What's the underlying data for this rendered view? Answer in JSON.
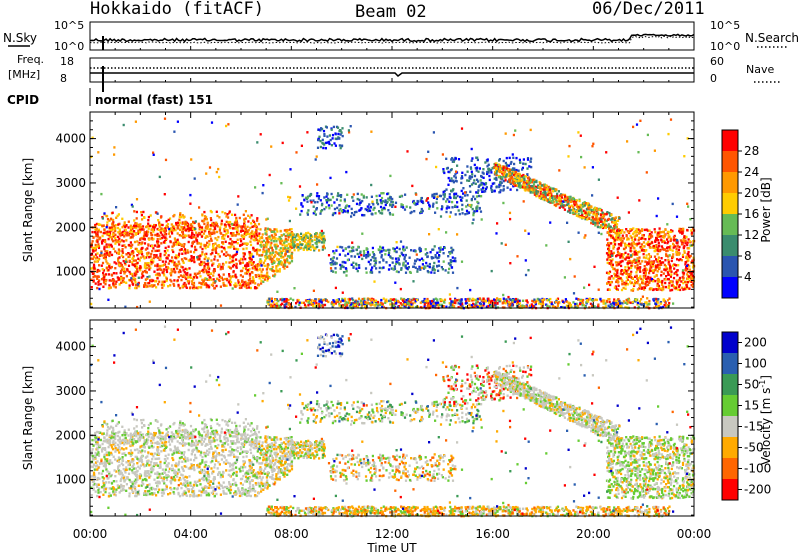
{
  "header": {
    "title_left": "Hokkaido (fitACF)",
    "title_center": "Beam 02",
    "title_right": "06/Dec/2011"
  },
  "top_panels": {
    "nsky": {
      "label_left": "N.Sky",
      "label_right": "N.Search",
      "ticks_left": [
        "10^5",
        "10^0"
      ],
      "ticks_right": [
        "10^5",
        "10^0"
      ]
    },
    "freq": {
      "label_left_1": "Freq.",
      "label_left_2": "[MHz]",
      "label_right": "Nave",
      "ticks_left": [
        "18",
        "8"
      ],
      "ticks_right": [
        "60",
        "0"
      ]
    },
    "cpid": {
      "label": "CPID",
      "value": "normal (fast) 151"
    }
  },
  "colors": {
    "power": [
      "#0000ff",
      "#2a55b0",
      "#3a8c6e",
      "#66bb55",
      "#ffcc00",
      "#ff9900",
      "#ff5500",
      "#ff0000"
    ],
    "velocity": [
      "#ff0000",
      "#ff6600",
      "#ffaa00",
      "#c8c8c0",
      "#66cc33",
      "#3a9a55",
      "#2a5fb0",
      "#0000cc"
    ]
  },
  "chart_data": [
    {
      "type": "heatmap",
      "name": "Power",
      "ylabel": "Slant Range [km]",
      "xlabel": "Time UT",
      "x_ticks": [
        "00:00",
        "04:00",
        "08:00",
        "12:00",
        "16:00",
        "20:00",
        "00:00"
      ],
      "y_ticks": [
        1000,
        2000,
        3000,
        4000
      ],
      "ylim": [
        180,
        4600
      ],
      "colorbar_label": "Power [dB]",
      "colorbar_ticks": [
        "4",
        "8",
        "12",
        "16",
        "20",
        "24",
        "28"
      ]
    },
    {
      "type": "heatmap",
      "name": "Velocity",
      "ylabel": "Slant Range [km]",
      "xlabel": "Time UT",
      "x_ticks": [
        "00:00",
        "04:00",
        "08:00",
        "12:00",
        "16:00",
        "20:00",
        "00:00"
      ],
      "y_ticks": [
        1000,
        2000,
        3000,
        4000
      ],
      "ylim": [
        180,
        4600
      ],
      "colorbar_label": "Velocity [m s",
      "colorbar_label_sup": "-1",
      "colorbar_label_end": "]",
      "colorbar_ticks": [
        "-200",
        "-100",
        "-50",
        "-15",
        "15",
        "50",
        "100",
        "200"
      ]
    }
  ],
  "x_axis_title": "Time UT"
}
